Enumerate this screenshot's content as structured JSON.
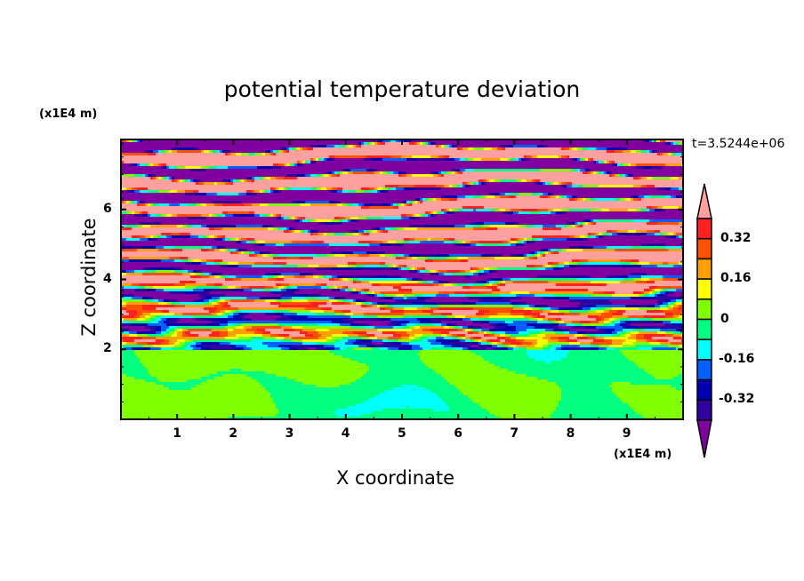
{
  "chart_data": {
    "type": "heatmap",
    "title": "potential temperature deviation",
    "xlabel": "X coordinate",
    "ylabel": "Z coordinate",
    "x_unit": "(x1E4 m)",
    "y_unit": "(x1E4 m)",
    "xlim": [
      0,
      10
    ],
    "ylim": [
      0,
      8
    ],
    "x_ticks": [
      "1",
      "2",
      "3",
      "4",
      "5",
      "6",
      "7",
      "8",
      "9"
    ],
    "y_ticks": [
      "2",
      "4",
      "6"
    ],
    "time_label": "t=3.5244e+06",
    "colorbar": {
      "levels": [
        -0.4,
        -0.32,
        -0.24,
        -0.16,
        -0.08,
        0,
        0.08,
        0.16,
        0.24,
        0.32,
        0.4
      ],
      "labels": [
        "0.32",
        "0.16",
        "0",
        "-0.16",
        "-0.32"
      ],
      "label_values": [
        0.32,
        0.16,
        0,
        -0.16,
        -0.32
      ],
      "colors_low_to_high": [
        "#8000a0",
        "#3000a0",
        "#0000b0",
        "#0060ff",
        "#00ffff",
        "#00ff80",
        "#80ff00",
        "#ffff00",
        "#ffa000",
        "#ff5000",
        "#ff2020",
        "#ffa0a0"
      ],
      "extend": "both"
    },
    "description_of_field": {
      "lower_layer_z_below": 2,
      "lower_layer_range": [
        -0.08,
        0.08
      ],
      "upper_layer_range": [
        -0.5,
        0.5
      ]
    }
  }
}
